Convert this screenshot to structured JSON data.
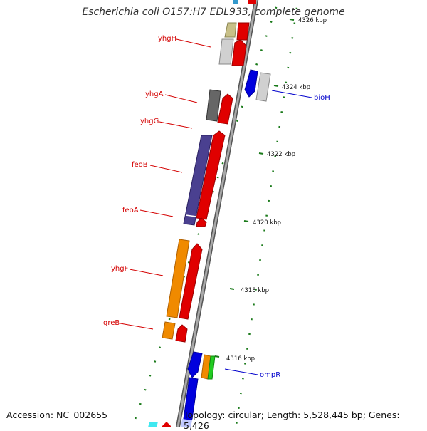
{
  "title": "Escherichia coli O157:H7 EDL933, complete genome",
  "footer": {
    "accession": "Accession: NC_002655",
    "topology": "Topology: circular; Length: 5,528,445 bp; Genes: 5,426"
  },
  "colors": {
    "forward_label": "#d40000",
    "reverse_label": "#0000cc",
    "backbone": "#8c8c8c",
    "scale_ticks": "#1a7a1a"
  },
  "kbp_marks": [
    {
      "label": "4326 kbp"
    },
    {
      "label": "4324 kbp"
    },
    {
      "label": "4322 kbp"
    },
    {
      "label": "4320 kbp"
    },
    {
      "label": "4318 kbp"
    },
    {
      "label": "4316 kbp"
    }
  ],
  "genes": [
    {
      "name": "yhgH",
      "strand": "forward"
    },
    {
      "name": "yhgA",
      "strand": "forward"
    },
    {
      "name": "yhgG",
      "strand": "forward"
    },
    {
      "name": "feoB",
      "strand": "forward"
    },
    {
      "name": "feoA",
      "strand": "forward"
    },
    {
      "name": "yhgF",
      "strand": "forward"
    },
    {
      "name": "greB",
      "strand": "forward"
    },
    {
      "name": "bioH",
      "strand": "reverse"
    },
    {
      "name": "ompR",
      "strand": "reverse"
    }
  ]
}
